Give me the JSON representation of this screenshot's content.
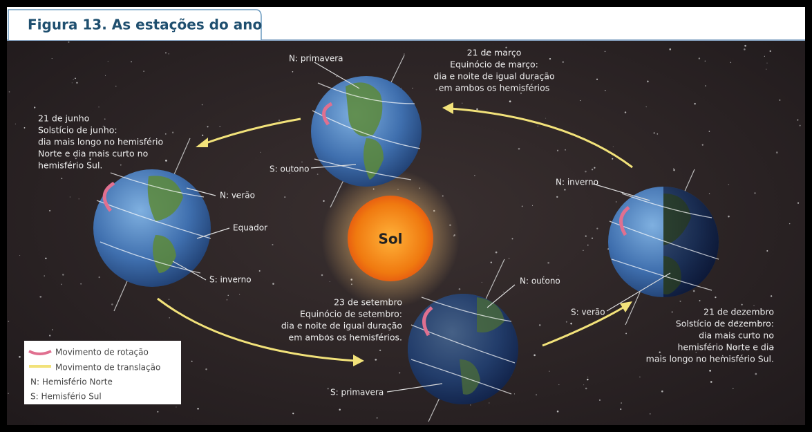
{
  "title": "Figura 13. As estações do ano",
  "sun": "Sol",
  "positions": {
    "march": {
      "caption": [
        "21 de março",
        "Equinócio de março:",
        "dia e noite de igual duração",
        "em ambos os hemisférios"
      ],
      "north": "N: primavera",
      "south": "S: outono"
    },
    "june": {
      "caption": [
        "21 de junho",
        "Solstício de junho:",
        "dia mais longo no hemisfério",
        "Norte e dia mais curto no",
        "hemisfério Sul."
      ],
      "north": "N: verão",
      "equator": "Equador",
      "south": "S: inverno"
    },
    "september": {
      "caption": [
        "23 de setembro",
        "Equinócio de setembro:",
        "dia e noite de igual duração",
        "em ambos os hemisférios."
      ],
      "north": "N: outono",
      "south": "S: primavera"
    },
    "december": {
      "caption": [
        "21 de dezembro",
        "Solstício de dezembro:",
        "dia mais curto no",
        "hemisfério Norte e dia",
        "mais longo no hemisfério Sul."
      ],
      "north": "N: inverno",
      "south": "S: verão"
    }
  },
  "legend": [
    "Movimento de rotação",
    "Movimento de translação",
    "N: Hemisfério Norte",
    "S: Hemisfério Sul"
  ]
}
